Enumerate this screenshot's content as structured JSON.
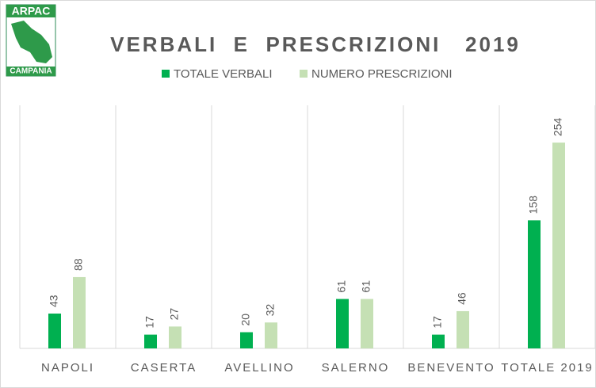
{
  "logo": {
    "top": "ARPAC",
    "bottom": "CAMPANIA"
  },
  "chart_data": {
    "type": "bar",
    "title": "VERBALI  E  PRESCRIZIONI   2019",
    "categories": [
      "NAPOLI",
      "CASERTA",
      "AVELLINO",
      "SALERNO",
      "BENEVENTO",
      "TOTALE 2019"
    ],
    "series": [
      {
        "name": "TOTALE VERBALI",
        "color": "#00b050",
        "values": [
          43,
          17,
          20,
          61,
          17,
          158
        ]
      },
      {
        "name": "NUMERO PRESCRIZIONI",
        "color": "#c5e0b4",
        "values": [
          88,
          27,
          32,
          61,
          46,
          254
        ]
      }
    ],
    "ylim": [
      0,
      300
    ]
  }
}
